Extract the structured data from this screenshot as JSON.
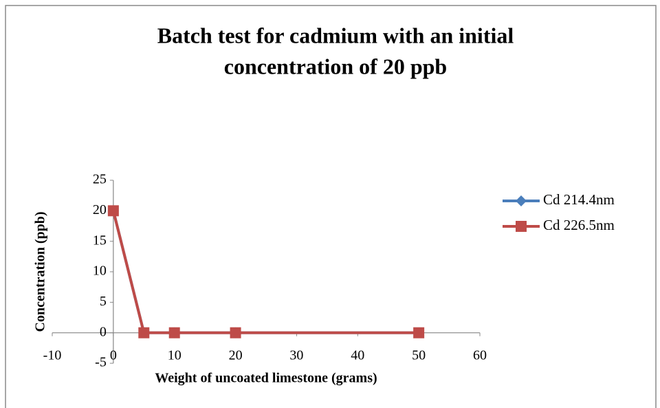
{
  "chart_data": {
    "type": "line",
    "title": [
      "Batch test for cadmium with an initial",
      "concentration of 20 ppb"
    ],
    "x_label": "Weight of uncoated limestone (grams)",
    "y_label": "Concentration (ppb)",
    "x": [
      0,
      5,
      10,
      20,
      50
    ],
    "series": [
      {
        "name": "Cd 214.4nm",
        "color": "#4a7ebb",
        "marker": "diamond",
        "values": [
          20,
          0,
          0,
          0,
          0
        ]
      },
      {
        "name": "Cd 226.5nm",
        "color": "#be4b48",
        "marker": "square",
        "values": [
          20,
          0,
          0,
          0,
          0
        ]
      }
    ],
    "xlim": [
      -10,
      60
    ],
    "xticks": [
      -10,
      0,
      10,
      20,
      30,
      40,
      50,
      60
    ],
    "ylim": [
      -5,
      25
    ],
    "yticks": [
      -5,
      0,
      5,
      10,
      15,
      20,
      25
    ],
    "grid": false,
    "legend": "right"
  }
}
